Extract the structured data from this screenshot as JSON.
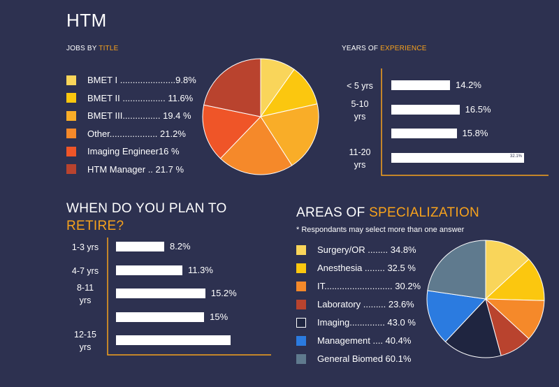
{
  "title": "HTM",
  "jobs": {
    "heading_prefix": "JOBS BY ",
    "heading_accent": "TITLE",
    "items": [
      {
        "label": "BMET I ......................9.8%",
        "color": "#f9d55a"
      },
      {
        "label": "BMET II ................. 11.6%",
        "color": "#fbc70f"
      },
      {
        "label": "BMET III............... 19.4 %",
        "color": "#f9ad28"
      },
      {
        "label": "Other................... 21.2%",
        "color": "#f5892a"
      },
      {
        "label": "Imaging Engineer16 %",
        "color": "#ef5528"
      },
      {
        "label": "HTM Manager .. 21.7 %",
        "color": "#b9432e"
      }
    ]
  },
  "experience": {
    "heading_prefix": "YEARS OF ",
    "heading_accent": "EXPERIENCE",
    "rows": [
      {
        "label": "< 5 yrs",
        "value": "14.2%"
      },
      {
        "label": "5-10\nyrs",
        "value": "16.5%"
      },
      {
        "label": "",
        "value": "15.8%"
      },
      {
        "label": "11-20\nyrs",
        "value": "32.1%"
      }
    ]
  },
  "retire": {
    "heading_line1": "WHEN DO YOU PLAN TO",
    "heading_line2": "RETIRE?",
    "rows": [
      {
        "label": "1-3 yrs",
        "value": "8.2%"
      },
      {
        "label": "4-7 yrs",
        "value": "11.3%"
      },
      {
        "label": "8-11\nyrs",
        "value": "15.2%"
      },
      {
        "label": "",
        "value": "15%"
      },
      {
        "label": "12-15\nyrs",
        "value": ""
      }
    ]
  },
  "areas": {
    "heading_prefix": "AREAS OF ",
    "heading_accent": "SPECIALIZATION",
    "note": "* Respondants may select more than one answer",
    "items": [
      {
        "label": "Surgery/OR ........ 34.8%",
        "color": "#f9d55a"
      },
      {
        "label": "Anesthesia ........ 32.5 %",
        "color": "#fbc70f"
      },
      {
        "label": "IT........................... 30.2%",
        "color": "#f5892a"
      },
      {
        "label": "Laboratory ......... 23.6%",
        "color": "#b9432e"
      },
      {
        "label": "Imaging.............. 43.0 %",
        "color": "#1f2540"
      },
      {
        "label": "Management .... 40.4%",
        "color": "#2b7be0"
      },
      {
        "label": "General Biomed 60.1%",
        "color": "#5f7a8e"
      }
    ]
  },
  "chart_data": [
    {
      "type": "pie",
      "title": "JOBS BY TITLE",
      "categories": [
        "BMET I",
        "BMET II",
        "BMET III",
        "Other",
        "Imaging Engineer",
        "HTM Manager"
      ],
      "values": [
        9.8,
        11.6,
        19.4,
        21.2,
        16,
        21.7
      ],
      "colors": [
        "#f9d55a",
        "#fbc70f",
        "#f9ad28",
        "#f5892a",
        "#ef5528",
        "#b9432e"
      ]
    },
    {
      "type": "bar",
      "title": "YEARS OF EXPERIENCE",
      "orientation": "horizontal",
      "categories": [
        "< 5 yrs",
        "5-10 yrs",
        "",
        "11-20 yrs"
      ],
      "values": [
        14.2,
        16.5,
        15.8,
        32.1
      ]
    },
    {
      "type": "bar",
      "title": "WHEN DO YOU PLAN TO RETIRE?",
      "orientation": "horizontal",
      "categories": [
        "1-3 yrs",
        "4-7 yrs",
        "8-11 yrs",
        "",
        "12-15 yrs"
      ],
      "values": [
        8.2,
        11.3,
        15.2,
        15,
        19.5
      ]
    },
    {
      "type": "pie",
      "title": "AREAS OF SPECIALIZATION",
      "categories": [
        "Surgery/OR",
        "Anesthesia",
        "IT",
        "Laboratory",
        "Imaging",
        "Management",
        "General Biomed"
      ],
      "values": [
        34.8,
        32.5,
        30.2,
        23.6,
        43.0,
        40.4,
        60.1
      ],
      "colors": [
        "#f9d55a",
        "#fbc70f",
        "#f5892a",
        "#b9432e",
        "#1f2540",
        "#2b7be0",
        "#5f7a8e"
      ]
    }
  ]
}
